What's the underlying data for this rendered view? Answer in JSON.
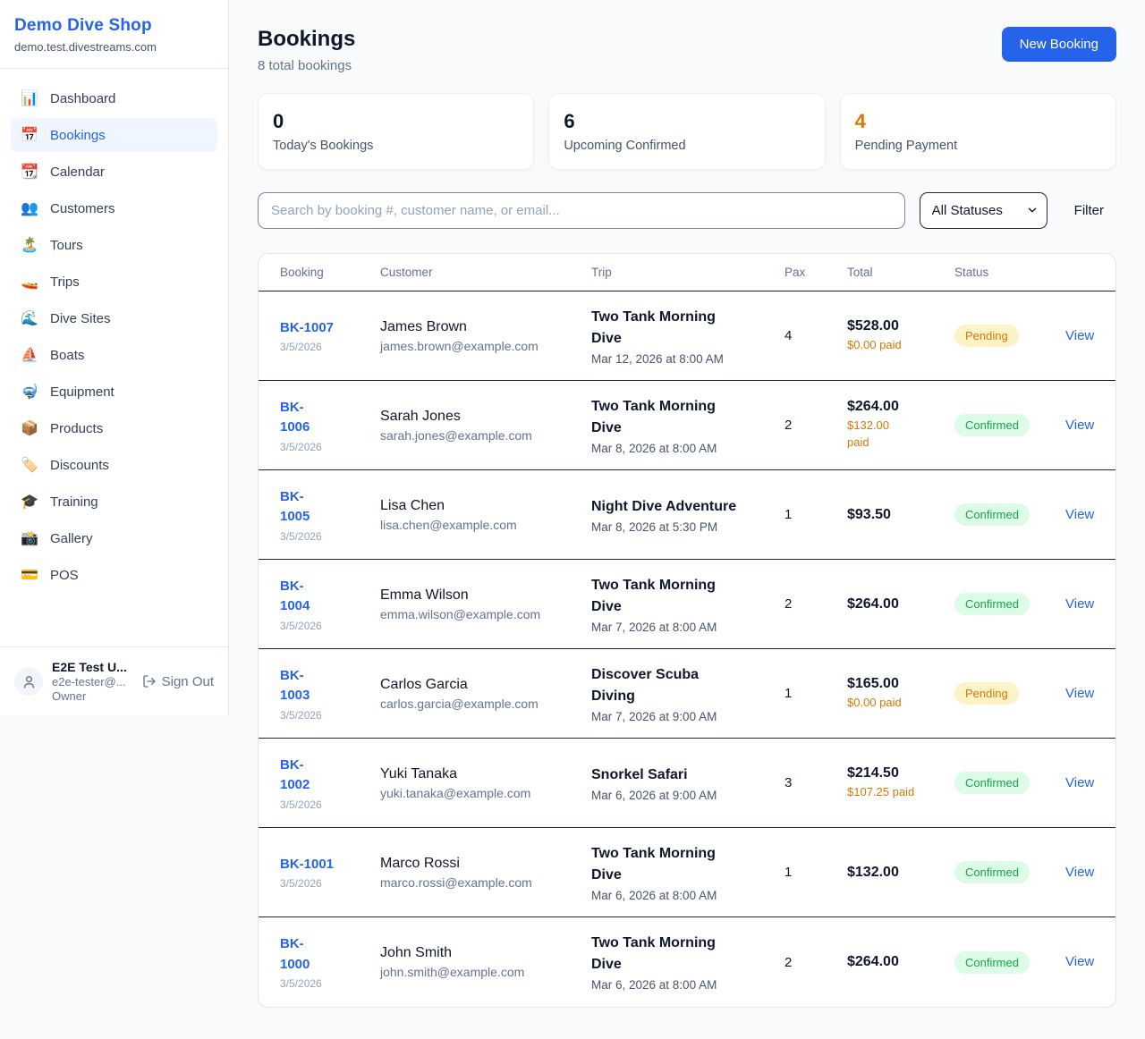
{
  "sidebar": {
    "brand": {
      "name": "Demo Dive Shop",
      "domain": "demo.test.divestreams.com"
    },
    "nav": [
      {
        "name": "dashboard",
        "icon": "📊",
        "label": "Dashboard",
        "active": false
      },
      {
        "name": "bookings",
        "icon": "📅",
        "label": "Bookings",
        "active": true
      },
      {
        "name": "calendar",
        "icon": "📆",
        "label": "Calendar",
        "active": false
      },
      {
        "name": "customers",
        "icon": "👥",
        "label": "Customers",
        "active": false
      },
      {
        "name": "tours",
        "icon": "🏝️",
        "label": "Tours",
        "active": false
      },
      {
        "name": "trips",
        "icon": "🚤",
        "label": "Trips",
        "active": false
      },
      {
        "name": "dive-sites",
        "icon": "🌊",
        "label": "Dive Sites",
        "active": false
      },
      {
        "name": "boats",
        "icon": "⛵",
        "label": "Boats",
        "active": false
      },
      {
        "name": "equipment",
        "icon": "🤿",
        "label": "Equipment",
        "active": false
      },
      {
        "name": "products",
        "icon": "📦",
        "label": "Products",
        "active": false
      },
      {
        "name": "discounts",
        "icon": "🏷️",
        "label": "Discounts",
        "active": false
      },
      {
        "name": "training",
        "icon": "🎓",
        "label": "Training",
        "active": false
      },
      {
        "name": "gallery",
        "icon": "📸",
        "label": "Gallery",
        "active": false
      },
      {
        "name": "pos",
        "icon": "💳",
        "label": "POS",
        "active": false
      }
    ],
    "user": {
      "name": "E2E Test U...",
      "email": "e2e-tester@...",
      "role": "Owner",
      "sign_out": "Sign Out"
    }
  },
  "header": {
    "title": "Bookings",
    "subtitle": "8 total bookings",
    "new_booking": "New Booking"
  },
  "stats": [
    {
      "value": "0",
      "label": "Today's Bookings",
      "color": "#0f172a"
    },
    {
      "value": "6",
      "label": "Upcoming Confirmed",
      "color": "#0f172a"
    },
    {
      "value": "4",
      "label": "Pending Payment",
      "color": "#d97706"
    }
  ],
  "controls": {
    "search_placeholder": "Search by booking #, customer name, or email...",
    "status_filter_value": "All Statuses",
    "filter_label": "Filter"
  },
  "table": {
    "columns": [
      "Booking",
      "Customer",
      "Trip",
      "Pax",
      "Total",
      "Status",
      ""
    ],
    "status_styles": {
      "Pending": {
        "bg": "#fef3c7",
        "text": "#d97706"
      },
      "Confirmed": {
        "bg": "#dcfce7",
        "text": "#16a34a"
      }
    },
    "rows": [
      {
        "id": "BK-1007",
        "date": "3/5/2026",
        "customer": "James Brown",
        "email": "james.brown@example.com",
        "trip": "Two Tank Morning\nDive",
        "trip_date": "Mar 12, 2026 at 8:00 AM",
        "pax": "4",
        "total": "$528.00",
        "paid": "$0.00 paid",
        "status": "Pending",
        "action": "View"
      },
      {
        "id": "BK-\n1006",
        "date": "3/5/2026",
        "customer": "Sarah Jones",
        "email": "sarah.jones@example.com",
        "trip": "Two Tank Morning\nDive",
        "trip_date": "Mar 8, 2026 at 8:00 AM",
        "pax": "2",
        "total": "$264.00",
        "paid": "$132.00\npaid",
        "status": "Confirmed",
        "action": "View"
      },
      {
        "id": "BK-\n1005",
        "date": "3/5/2026",
        "customer": "Lisa Chen",
        "email": "lisa.chen@example.com",
        "trip": "Night Dive Adventure",
        "trip_date": "Mar 8, 2026 at 5:30 PM",
        "pax": "1",
        "total": "$93.50",
        "paid": "",
        "status": "Confirmed",
        "action": "View"
      },
      {
        "id": "BK-\n1004",
        "date": "3/5/2026",
        "customer": "Emma Wilson",
        "email": "emma.wilson@example.com",
        "trip": "Two Tank Morning\nDive",
        "trip_date": "Mar 7, 2026 at 8:00 AM",
        "pax": "2",
        "total": "$264.00",
        "paid": "",
        "status": "Confirmed",
        "action": "View"
      },
      {
        "id": "BK-\n1003",
        "date": "3/5/2026",
        "customer": "Carlos Garcia",
        "email": "carlos.garcia@example.com",
        "trip": "Discover Scuba\nDiving",
        "trip_date": "Mar 7, 2026 at 9:00 AM",
        "pax": "1",
        "total": "$165.00",
        "paid": "$0.00 paid",
        "status": "Pending",
        "action": "View"
      },
      {
        "id": "BK-\n1002",
        "date": "3/5/2026",
        "customer": "Yuki Tanaka",
        "email": "yuki.tanaka@example.com",
        "trip": "Snorkel Safari",
        "trip_date": "Mar 6, 2026 at 9:00 AM",
        "pax": "3",
        "total": "$214.50",
        "paid": "$107.25 paid",
        "status": "Confirmed",
        "action": "View"
      },
      {
        "id": "BK-1001",
        "date": "3/5/2026",
        "customer": "Marco Rossi",
        "email": "marco.rossi@example.com",
        "trip": "Two Tank Morning\nDive",
        "trip_date": "Mar 6, 2026 at 8:00 AM",
        "pax": "1",
        "total": "$132.00",
        "paid": "",
        "status": "Confirmed",
        "action": "View"
      },
      {
        "id": "BK-\n1000",
        "date": "3/5/2026",
        "customer": "John Smith",
        "email": "john.smith@example.com",
        "trip": "Two Tank Morning\nDive",
        "trip_date": "Mar 6, 2026 at 8:00 AM",
        "pax": "2",
        "total": "$264.00",
        "paid": "",
        "status": "Confirmed",
        "action": "View"
      }
    ]
  }
}
